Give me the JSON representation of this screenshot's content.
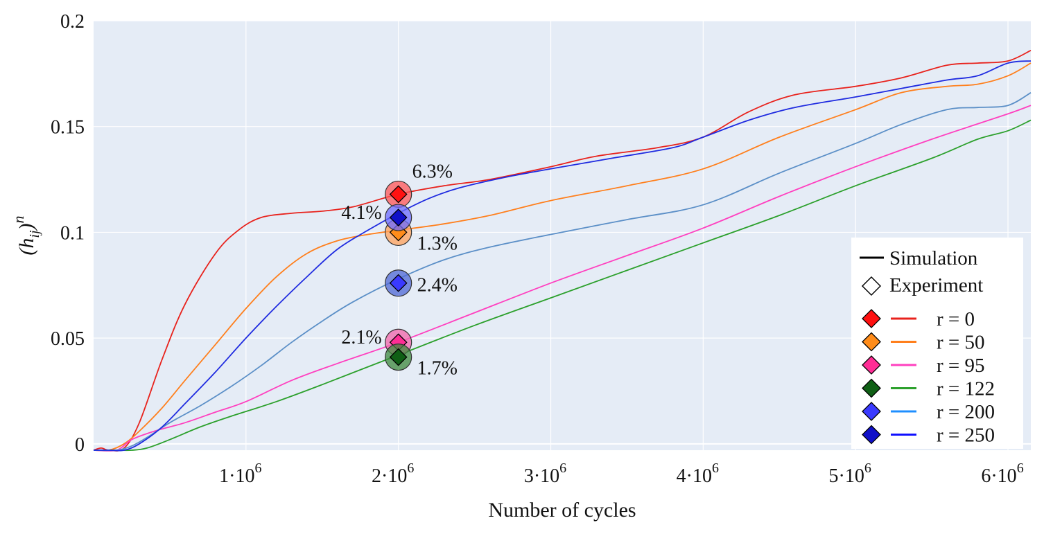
{
  "chart_data": {
    "type": "line",
    "title": "",
    "xlabel": "Number of cycles",
    "ylabel": "(h_ij)^n",
    "ylabel_parts": {
      "base": "(h",
      "sub": "ij",
      "close": ")",
      "sup": "n"
    },
    "xlim": [
      0,
      6150000
    ],
    "ylim": [
      -0.003,
      0.2
    ],
    "grid": true,
    "x_ticks": [
      {
        "value": 1000000,
        "mantissa": "1·10",
        "exp": "6"
      },
      {
        "value": 2000000,
        "mantissa": "2·10",
        "exp": "6"
      },
      {
        "value": 3000000,
        "mantissa": "3·10",
        "exp": "6"
      },
      {
        "value": 4000000,
        "mantissa": "4·10",
        "exp": "6"
      },
      {
        "value": 5000000,
        "mantissa": "5·10",
        "exp": "6"
      },
      {
        "value": 6000000,
        "mantissa": "6·10",
        "exp": "6"
      }
    ],
    "y_ticks": [
      {
        "value": 0,
        "label": "0"
      },
      {
        "value": 0.05,
        "label": "0.05"
      },
      {
        "value": 0.1,
        "label": "0.1"
      },
      {
        "value": 0.15,
        "label": "0.15"
      },
      {
        "value": 0.2,
        "label": "0.2"
      }
    ],
    "series": [
      {
        "name": "r = 0",
        "color": "#e8221c",
        "x": [
          0,
          50000,
          100000,
          200000,
          300000,
          450000,
          600000,
          800000,
          950000,
          1100000,
          1300000,
          1500000,
          1700000,
          2000000,
          2300000,
          2600000,
          3000000,
          3300000,
          3700000,
          4000000,
          4300000,
          4600000,
          5000000,
          5300000,
          5600000,
          5800000,
          6000000,
          6150000
        ],
        "values": [
          -0.003,
          -0.002,
          -0.003,
          -0.002,
          0.01,
          0.04,
          0.066,
          0.09,
          0.101,
          0.107,
          0.109,
          0.11,
          0.112,
          0.118,
          0.122,
          0.125,
          0.131,
          0.136,
          0.14,
          0.145,
          0.157,
          0.165,
          0.169,
          0.173,
          0.179,
          0.18,
          0.181,
          0.186
        ]
      },
      {
        "name": "r = 50",
        "color": "#ff7f1c",
        "x": [
          0,
          100000,
          200000,
          300000,
          450000,
          600000,
          800000,
          1000000,
          1200000,
          1400000,
          1600000,
          1800000,
          2000000,
          2300000,
          2600000,
          3000000,
          3500000,
          4000000,
          4500000,
          5000000,
          5300000,
          5600000,
          5800000,
          6000000,
          6150000
        ],
        "values": [
          -0.003,
          -0.003,
          0.0,
          0.006,
          0.017,
          0.03,
          0.047,
          0.064,
          0.079,
          0.09,
          0.096,
          0.099,
          0.101,
          0.104,
          0.108,
          0.115,
          0.122,
          0.13,
          0.145,
          0.158,
          0.166,
          0.169,
          0.17,
          0.174,
          0.18
        ]
      },
      {
        "name": "r = 95",
        "color": "#ff3fbf",
        "x": [
          0,
          150000,
          250000,
          400000,
          600000,
          800000,
          1000000,
          1300000,
          1600000,
          2000000,
          2500000,
          3000000,
          3500000,
          4000000,
          4500000,
          5000000,
          5500000,
          6000000,
          6150000
        ],
        "values": [
          -0.003,
          -0.003,
          0.002,
          0.006,
          0.01,
          0.015,
          0.02,
          0.03,
          0.038,
          0.048,
          0.062,
          0.076,
          0.089,
          0.102,
          0.117,
          0.131,
          0.144,
          0.156,
          0.16
        ]
      },
      {
        "name": "r = 122",
        "color": "#2ca02c",
        "x": [
          0,
          150000,
          250000,
          350000,
          500000,
          700000,
          900000,
          1200000,
          1500000,
          2000000,
          2500000,
          3000000,
          3500000,
          4000000,
          4500000,
          5000000,
          5500000,
          5800000,
          6000000,
          6150000
        ],
        "values": [
          -0.003,
          -0.003,
          -0.003,
          -0.002,
          0.002,
          0.008,
          0.013,
          0.02,
          0.028,
          0.042,
          0.056,
          0.069,
          0.082,
          0.095,
          0.108,
          0.122,
          0.135,
          0.144,
          0.148,
          0.153
        ]
      },
      {
        "name": "r = 200",
        "color": "#5b8fc7",
        "x": [
          0,
          150000,
          250000,
          350000,
          500000,
          700000,
          900000,
          1100000,
          1300000,
          1500000,
          1700000,
          2000000,
          2300000,
          2600000,
          3000000,
          3500000,
          4000000,
          4500000,
          5000000,
          5300000,
          5600000,
          5800000,
          6000000,
          6150000
        ],
        "values": [
          -0.003,
          -0.003,
          -0.001,
          0.003,
          0.01,
          0.018,
          0.027,
          0.037,
          0.048,
          0.058,
          0.067,
          0.078,
          0.087,
          0.093,
          0.099,
          0.106,
          0.113,
          0.128,
          0.142,
          0.151,
          0.158,
          0.159,
          0.16,
          0.166
        ]
      },
      {
        "name": "r = 250",
        "color": "#1f2be0",
        "x": [
          0,
          100000,
          200000,
          300000,
          450000,
          600000,
          800000,
          1000000,
          1200000,
          1400000,
          1600000,
          1800000,
          2000000,
          2200000,
          2400000,
          2700000,
          3000000,
          3400000,
          3800000,
          4000000,
          4300000,
          4600000,
          5000000,
          5300000,
          5600000,
          5800000,
          6000000,
          6150000
        ],
        "values": [
          -0.003,
          -0.003,
          -0.003,
          0.0,
          0.008,
          0.019,
          0.034,
          0.05,
          0.065,
          0.079,
          0.092,
          0.101,
          0.109,
          0.116,
          0.121,
          0.126,
          0.13,
          0.135,
          0.14,
          0.145,
          0.153,
          0.159,
          0.164,
          0.168,
          0.172,
          0.174,
          0.18,
          0.181
        ]
      }
    ],
    "experiment": [
      {
        "name": "r = 0",
        "x": 2000000,
        "y": 0.118,
        "error": "6.3%",
        "marker_color": "#ff1111",
        "circle_color": "#ff5555",
        "label_pos": "above-right"
      },
      {
        "name": "r = 50",
        "x": 2000000,
        "y": 0.1,
        "error": "1.3%",
        "marker_color": "#ff8c1a",
        "circle_color": "#ffa25a",
        "label_pos": "below-right"
      },
      {
        "name": "r = 95",
        "x": 2000000,
        "y": 0.048,
        "error": "2.1%",
        "marker_color": "#ff2d95",
        "circle_color": "#f266aa",
        "label_pos": "left"
      },
      {
        "name": "r = 122",
        "x": 2000000,
        "y": 0.041,
        "error": "1.7%",
        "marker_color": "#0f5f15",
        "circle_color": "#3e8a3e",
        "label_pos": "below-right"
      },
      {
        "name": "r = 200",
        "x": 2000000,
        "y": 0.076,
        "error": "2.4%",
        "marker_color": "#3a3aff",
        "circle_color": "#4d68d6",
        "label_pos": "right"
      },
      {
        "name": "r = 250",
        "x": 2000000,
        "y": 0.107,
        "error": "4.1%",
        "marker_color": "#1010c8",
        "circle_color": "#6b6bff",
        "label_pos": "left"
      }
    ],
    "legend": {
      "position": "bottom-right",
      "style_entries": [
        {
          "symbol": "line",
          "label": "Simulation"
        },
        {
          "symbol": "diamond-open",
          "label": "Experiment"
        }
      ],
      "entries": [
        {
          "label": "r = 0",
          "marker_color": "#ff1111",
          "line_color": "#e8221c"
        },
        {
          "label": "r = 50",
          "marker_color": "#ff8c1a",
          "line_color": "#ff7f1c"
        },
        {
          "label": "r = 95",
          "marker_color": "#ff2d95",
          "line_color": "#ff3fbf"
        },
        {
          "label": "r = 122",
          "marker_color": "#0f5f15",
          "line_color": "#2ca02c"
        },
        {
          "label": "r = 200",
          "marker_color": "#3a3aff",
          "line_color": "#1f8fff"
        },
        {
          "label": "r = 250",
          "marker_color": "#1010c8",
          "line_color": "#1010ff"
        }
      ]
    },
    "plot_background": "#e5ecf6"
  }
}
